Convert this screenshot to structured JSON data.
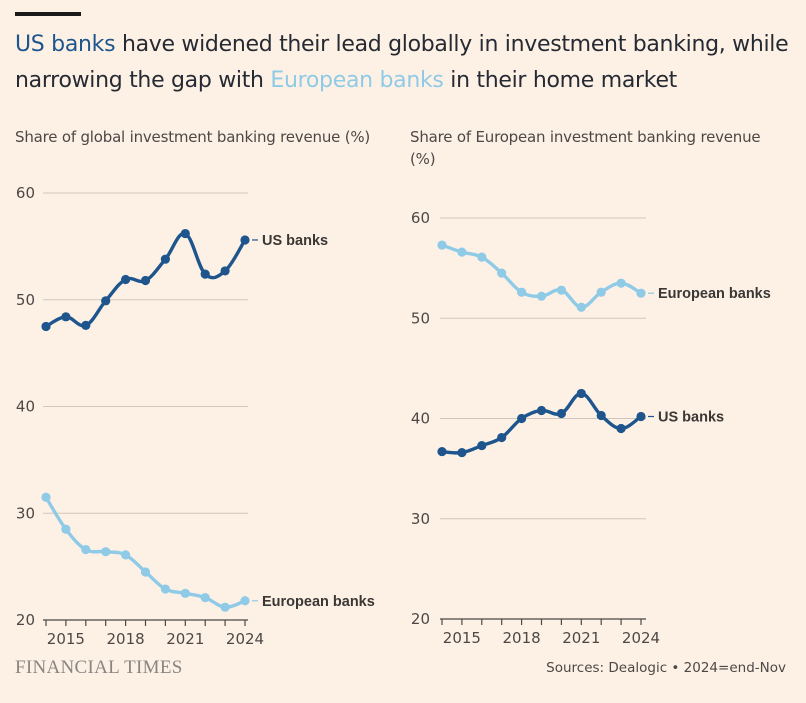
{
  "header": {
    "headline_us": "US banks",
    "headline_mid": " have widened their lead globally in investment banking, while narrowing the gap with ",
    "headline_eu": "European banks",
    "headline_end": " in their home market"
  },
  "colors": {
    "us": "#1e558c",
    "europe": "#8fcae6",
    "grid": "#cfc7bf",
    "axis": "#4d4845",
    "background": "#fdf1e6"
  },
  "chart_data": [
    {
      "type": "line",
      "title": "Share of global investment banking revenue (%)",
      "xlabel": "",
      "ylabel": "",
      "x": [
        2014,
        2015,
        2016,
        2017,
        2018,
        2019,
        2020,
        2021,
        2022,
        2023,
        2024
      ],
      "xticks": [
        "2015",
        "2018",
        "2021",
        "2024"
      ],
      "yticks": [
        "20",
        "30",
        "40",
        "50",
        "60"
      ],
      "ylim": [
        20,
        60
      ],
      "grid": true,
      "series": [
        {
          "name": "US banks",
          "color_key": "us",
          "values": [
            47.5,
            48.4,
            47.6,
            49.9,
            51.9,
            51.8,
            53.8,
            56.2,
            52.4,
            52.7,
            55.6
          ]
        },
        {
          "name": "European banks",
          "color_key": "europe",
          "values": [
            31.5,
            28.5,
            26.6,
            26.4,
            26.1,
            24.5,
            22.9,
            22.5,
            22.1,
            21.2,
            21.8
          ]
        }
      ]
    },
    {
      "type": "line",
      "title": "Share of European investment banking revenue (%)",
      "xlabel": "",
      "ylabel": "",
      "x": [
        2014,
        2015,
        2016,
        2017,
        2018,
        2019,
        2020,
        2021,
        2022,
        2023,
        2024
      ],
      "xticks": [
        "2015",
        "2018",
        "2021",
        "2024"
      ],
      "yticks": [
        "20",
        "30",
        "40",
        "50",
        "60"
      ],
      "ylim": [
        20,
        60
      ],
      "grid": true,
      "series": [
        {
          "name": "European banks",
          "color_key": "europe",
          "values": [
            57.3,
            56.6,
            56.1,
            54.5,
            52.6,
            52.2,
            52.8,
            51.1,
            52.6,
            53.5,
            52.5
          ]
        },
        {
          "name": "US banks",
          "color_key": "us",
          "values": [
            36.7,
            36.6,
            37.3,
            38.1,
            40.0,
            40.8,
            40.5,
            42.5,
            40.3,
            39.0,
            40.2
          ]
        }
      ]
    }
  ],
  "footer": {
    "brand": "FINANCIAL TIMES",
    "source": "Sources: Dealogic • 2024=end-Nov"
  }
}
